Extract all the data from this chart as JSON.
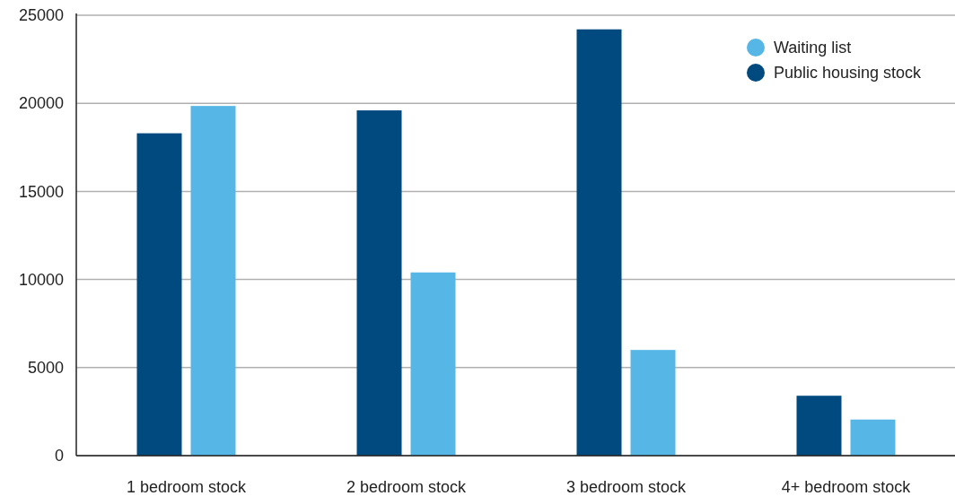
{
  "chart_data": {
    "type": "bar",
    "categories": [
      "1 bedroom stock",
      "2 bedroom stock",
      "3 bedroom stock",
      "4+ bedroom stock"
    ],
    "series": [
      {
        "name": "Public housing stock",
        "color": "#004a7f",
        "values": [
          18300,
          19600,
          24200,
          3400
        ]
      },
      {
        "name": "Waiting list",
        "color": "#56b7e6",
        "values": [
          19850,
          10400,
          6000,
          2050
        ]
      }
    ],
    "ylim": [
      0,
      25000
    ],
    "yticks": [
      0,
      5000,
      10000,
      15000,
      20000,
      25000
    ],
    "grid": "y",
    "legend": "top right"
  }
}
